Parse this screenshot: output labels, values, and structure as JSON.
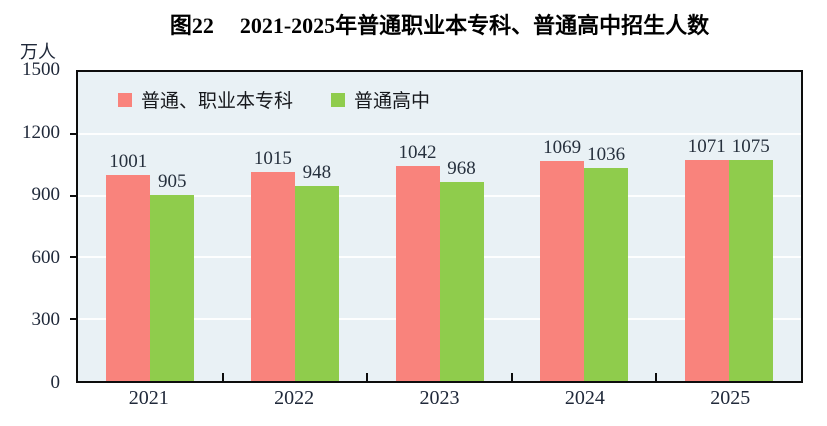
{
  "title": {
    "prefix": "图22",
    "text": "2021-2025年普通职业本专科、普通高中招生人数"
  },
  "unit_label": "万人",
  "colors": {
    "series1": "#f9837c",
    "series2": "#8fcc4c",
    "plot_bg": "#e9f1f5",
    "gridline": "#fdfefe",
    "axis": "#0d0d0d",
    "label_text": "#26303d"
  },
  "chart_data": {
    "type": "bar",
    "title": "图22 2021-2025年普通职业本专科、普通高中招生人数",
    "ylabel": "万人",
    "categories": [
      "2021",
      "2022",
      "2023",
      "2024",
      "2025"
    ],
    "series": [
      {
        "name": "普通、职业本专科",
        "color": "#f9837c",
        "values": [
          1001,
          1015,
          1042,
          1069,
          1071
        ]
      },
      {
        "name": "普通高中",
        "color": "#8fcc4c",
        "values": [
          905,
          948,
          968,
          1036,
          1075
        ]
      }
    ],
    "ylim": [
      0,
      1500
    ],
    "yticks": [
      0,
      300,
      600,
      900,
      1200,
      1500
    ],
    "grid": true,
    "legend_position": "top-left-inside"
  }
}
